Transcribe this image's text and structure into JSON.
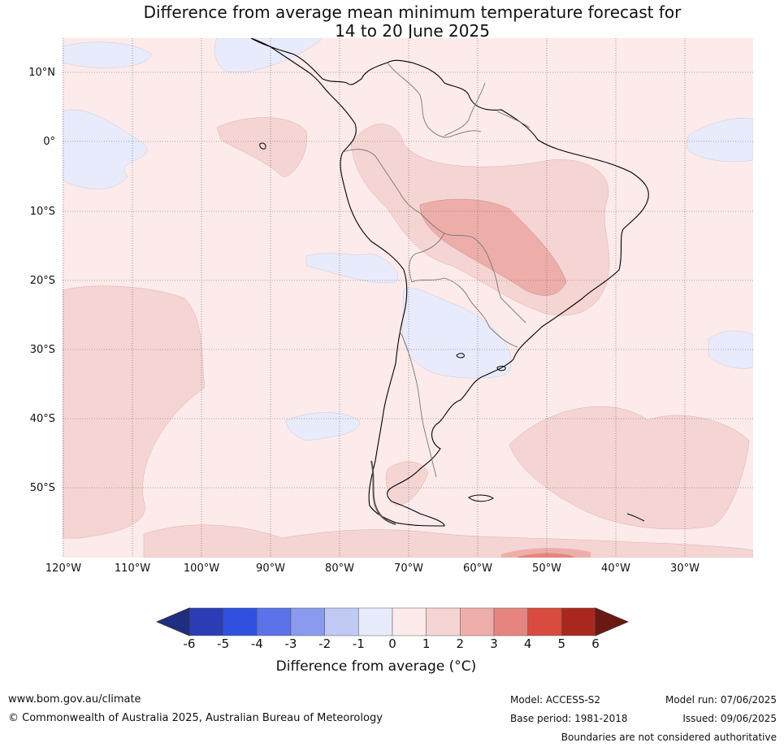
{
  "title_line1": "Difference from average mean minimum temperature forecast for",
  "title_line2": "14 to 20 June 2025",
  "lat_labels": [
    "10°N",
    "0°",
    "10°S",
    "20°S",
    "30°S",
    "40°S",
    "50°S"
  ],
  "lon_labels": [
    "120°W",
    "110°W",
    "100°W",
    "90°W",
    "80°W",
    "70°W",
    "60°W",
    "50°W",
    "40°W",
    "30°W"
  ],
  "colorbar": {
    "ticks": [
      "-6",
      "-5",
      "-4",
      "-3",
      "-2",
      "-1",
      "0",
      "1",
      "2",
      "3",
      "4",
      "5",
      "6"
    ],
    "colors": [
      "#1f2e80",
      "#2b3db5",
      "#3050e0",
      "#5c72e8",
      "#8a9bef",
      "#c0c8f4",
      "#e8ebfb",
      "#fcebea",
      "#f5d5d3",
      "#edaeaa",
      "#e6857f",
      "#d94a3f",
      "#a8281e",
      "#6b1812"
    ],
    "title": "Difference from average (°C)"
  },
  "footer": {
    "url": "www.bom.gov.au/climate",
    "copyright": "© Commonwealth of Australia 2025, Australian Bureau of Meteorology",
    "model": "Model: ACCESS-S2",
    "base_period": "Base period: 1981-2018",
    "model_run": "Model run: 07/06/2025",
    "issued": "Issued: 09/06/2025",
    "disclaimer": "Boundaries are not considered authoritative"
  }
}
